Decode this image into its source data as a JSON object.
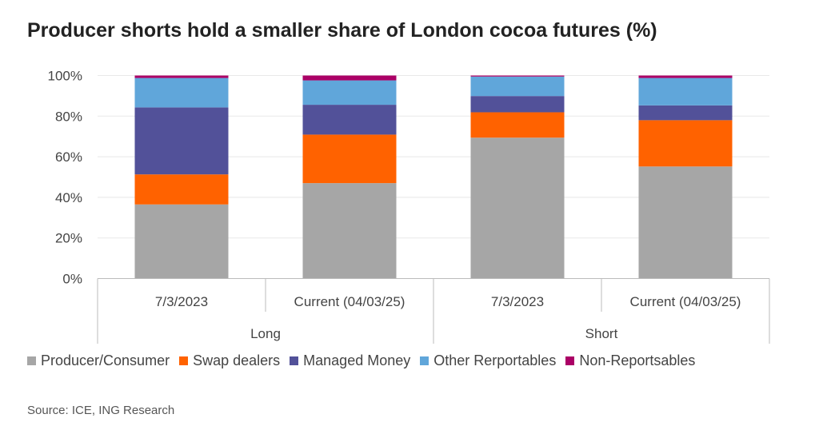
{
  "chart_data": {
    "type": "bar",
    "stacked": true,
    "title": "Producer shorts hold a smaller share of London cocoa futures (%)",
    "categories": [
      "7/3/2023",
      "Current (04/03/25)",
      "7/3/2023",
      "Current (04/03/25)"
    ],
    "groups": [
      {
        "label": "Long",
        "span": 2
      },
      {
        "label": "Short",
        "span": 2
      }
    ],
    "y_ticks": [
      "0%",
      "20%",
      "40%",
      "60%",
      "80%",
      "100%"
    ],
    "ylim": [
      0,
      100
    ],
    "grid": true,
    "legend_position": "bottom",
    "series": [
      {
        "name": "Producer/Consumer",
        "color": "#a6a6a6",
        "values": [
          36.5,
          47.0,
          69.4,
          55.2
        ]
      },
      {
        "name": "Swap dealers",
        "color": "#ff6200",
        "values": [
          14.8,
          23.9,
          12.5,
          22.8
        ]
      },
      {
        "name": "Managed Money",
        "color": "#525199",
        "values": [
          33.0,
          14.7,
          8.0,
          7.3
        ]
      },
      {
        "name": "Other Rerportables",
        "color": "#60a6da",
        "values": [
          14.5,
          12.0,
          9.6,
          13.5
        ]
      },
      {
        "name": "Non-Reportsables",
        "color": "#ab0066",
        "values": [
          1.2,
          2.4,
          0.5,
          1.2
        ]
      }
    ]
  },
  "source": "Source: ICE, ING Research"
}
